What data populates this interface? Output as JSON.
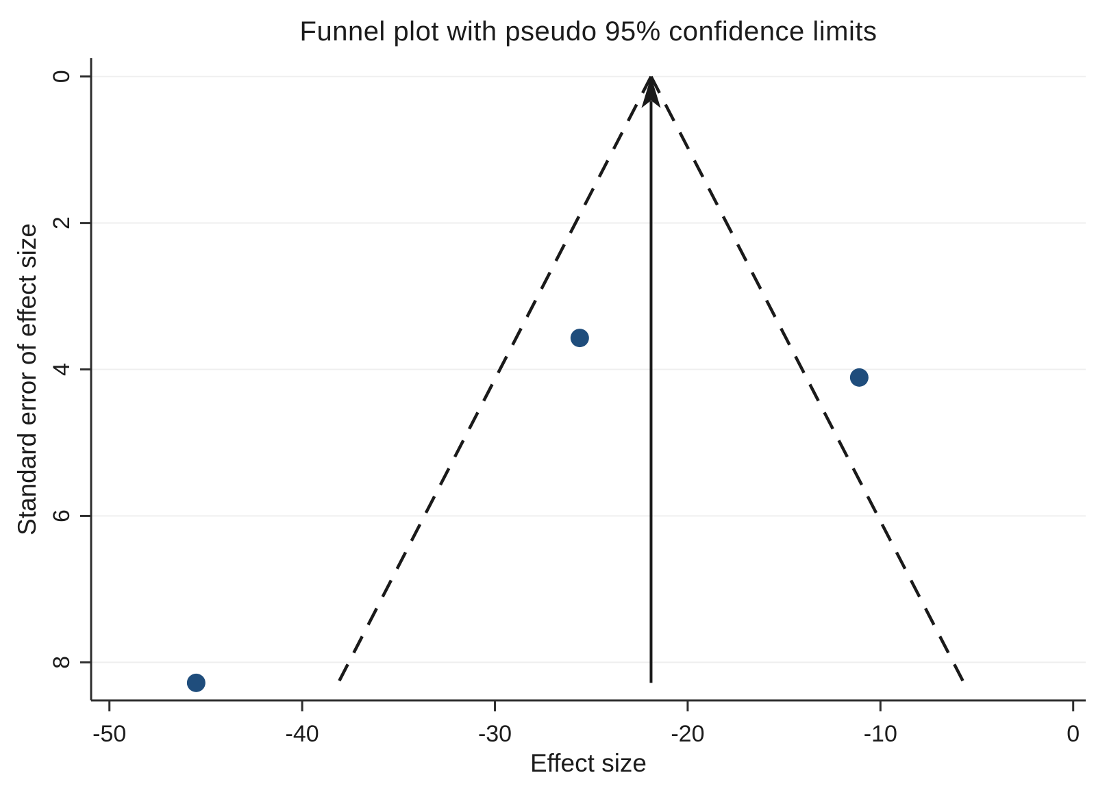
{
  "chart_data": {
    "type": "scatter",
    "subtype": "funnel-plot",
    "title": "Funnel plot with pseudo 95% confidence limits",
    "xlabel": "Effect size",
    "ylabel": "Standard error of effect size",
    "x_ticks": [
      -50,
      -40,
      -30,
      -20,
      -10,
      0
    ],
    "y_ticks": [
      0,
      2,
      4,
      6,
      8
    ],
    "x_range": [
      -50.95,
      0.65
    ],
    "y_range": [
      -0.25,
      8.52
    ],
    "y_axis_inverted": true,
    "grid": "horizontal",
    "legend": "none",
    "points": [
      {
        "effect": -45.5,
        "se": 8.28
      },
      {
        "effect": -25.6,
        "se": 3.57
      },
      {
        "effect": -11.1,
        "se": 4.11
      }
    ],
    "pooled_effect": -21.9,
    "ci_multiplier": 1.96,
    "funnel_se_max": 8.28,
    "colors": {
      "point": "#1f4d7c",
      "line": "#1a1a1a",
      "grid": "#efefef",
      "axis": "#2e2e2e",
      "background": "#ffffff"
    }
  }
}
